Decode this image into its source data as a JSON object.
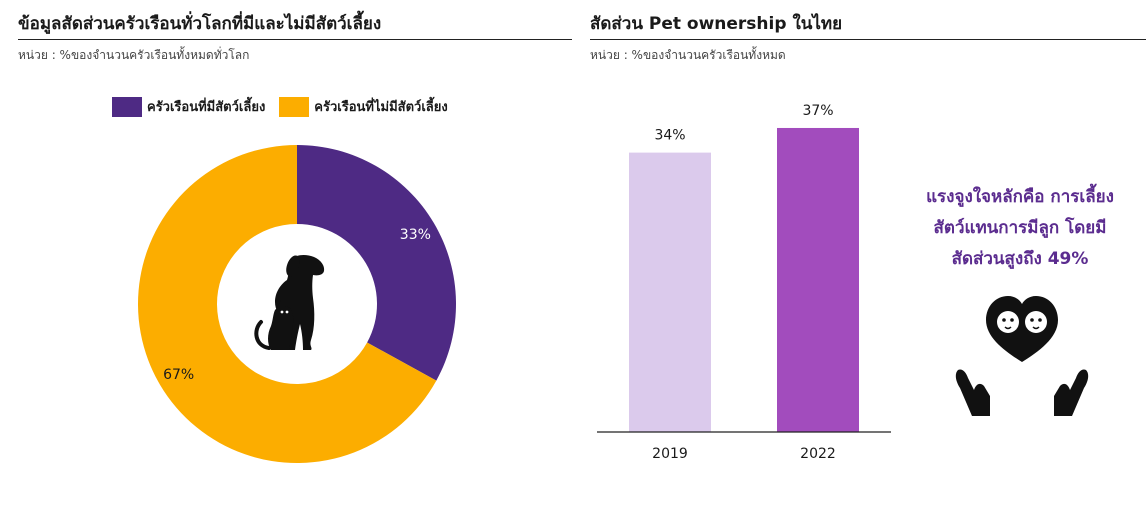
{
  "left": {
    "title": "ข้อมูลสัดส่วนครัวเรือนทั่วโลกที่มีและไม่มีสัตว์เลี้ยง",
    "unit": "หน่วย : %ของจำนวนครัวเรือนทั้งหมดทั่วโลก",
    "icon": "dog-and-cat-icon"
  },
  "right": {
    "title": "สัดส่วน Pet ownership ในไทย",
    "unit": "หน่วย : %ของจำนวนครัวเรือนทั้งหมด",
    "note_lines": [
      "แรงจูงใจหลักคือ การเลี้ยง",
      "สัตว์แทนการมีลูก โดยมี",
      "สัดส่วนสูงถึง 49%"
    ],
    "note_color": "#5b2c8f",
    "icon": "hands-holding-heart-with-pets-icon"
  },
  "chart_data": [
    {
      "type": "pie",
      "donut": true,
      "legend_position": "top",
      "slices": [
        {
          "name": "ครัวเรือนที่มีสัตว์เลี้ยง",
          "value": 33,
          "label": "33%",
          "color": "#4e2a84"
        },
        {
          "name": "ครัวเรือนที่ไม่มีสัตว์เลี้ยง",
          "value": 67,
          "label": "67%",
          "color": "#fcad00"
        }
      ]
    },
    {
      "type": "bar",
      "categories": [
        "2019",
        "2022"
      ],
      "values": [
        34,
        37
      ],
      "value_labels": [
        "34%",
        "37%"
      ],
      "colors": [
        "#dbcaec",
        "#a24cbd"
      ],
      "ylim": [
        0,
        40
      ],
      "grid": false
    }
  ]
}
